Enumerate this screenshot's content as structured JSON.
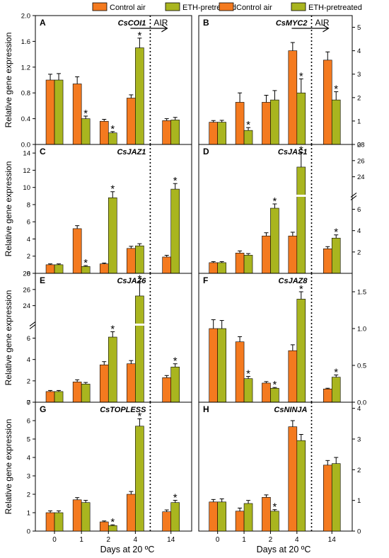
{
  "legend": [
    {
      "name": "Control air",
      "color": "#F47A1F"
    },
    {
      "name": "ETH-pretreated",
      "color": "#A9B51F"
    }
  ],
  "air_label": "AIR",
  "xlabel": "Days at 20 ºC",
  "ylabel": "Relative gene expression",
  "star": "*",
  "chart_data": [
    {
      "type": "bar",
      "panel": "A",
      "gene": "CsCOI1",
      "categories": [
        "0",
        "1",
        "2",
        "4",
        "14"
      ],
      "series": [
        {
          "name": "Control air",
          "values": [
            1.0,
            0.94,
            0.36,
            0.72,
            0.37
          ],
          "errors": [
            0.09,
            0.11,
            0.03,
            0.05,
            0.03
          ]
        },
        {
          "name": "ETH-pretreated",
          "values": [
            1.0,
            0.4,
            0.18,
            1.5,
            0.38
          ],
          "errors": [
            0.1,
            0.04,
            0.02,
            0.15,
            0.04
          ]
        }
      ],
      "significant": [
        [
          1,
          1
        ],
        [
          2,
          1
        ],
        [
          3,
          1
        ]
      ],
      "axis_side": "left",
      "ylim": [
        0,
        2.0
      ],
      "yticks": [
        "0.0",
        "0.4",
        "0.8",
        "1.2",
        "1.6",
        "2.0"
      ]
    },
    {
      "type": "bar",
      "panel": "B",
      "gene": "CsMYC2",
      "categories": [
        "0",
        "1",
        "2",
        "4",
        "14"
      ],
      "series": [
        {
          "name": "Control air",
          "values": [
            0.95,
            1.8,
            1.8,
            4.0,
            3.6
          ],
          "errors": [
            0.07,
            0.4,
            0.3,
            0.35,
            0.35
          ]
        },
        {
          "name": "ETH-pretreated",
          "values": [
            0.95,
            0.6,
            1.9,
            2.2,
            1.9
          ],
          "errors": [
            0.08,
            0.12,
            0.4,
            0.6,
            0.35
          ]
        }
      ],
      "significant": [
        [
          1,
          1
        ],
        [
          3,
          1
        ],
        [
          4,
          1
        ]
      ],
      "axis_side": "right",
      "ylim": [
        0,
        5.5
      ],
      "yticks": [
        "0",
        "1",
        "2",
        "3",
        "4",
        "5"
      ]
    },
    {
      "type": "bar",
      "panel": "C",
      "gene": "CsJAZ1",
      "categories": [
        "0",
        "1",
        "2",
        "4",
        "14"
      ],
      "series": [
        {
          "name": "Control air",
          "values": [
            1.0,
            5.2,
            1.1,
            2.9,
            1.9
          ],
          "errors": [
            0.1,
            0.35,
            0.1,
            0.25,
            0.2
          ]
        },
        {
          "name": "ETH-pretreated",
          "values": [
            1.0,
            0.8,
            8.8,
            3.2,
            9.8
          ],
          "errors": [
            0.1,
            0.1,
            0.7,
            0.25,
            0.65
          ]
        }
      ],
      "significant": [
        [
          1,
          1
        ],
        [
          2,
          1
        ],
        [
          4,
          1
        ]
      ],
      "axis_side": "left",
      "ylim": [
        0,
        15
      ],
      "yticks": [
        "0",
        "2",
        "4",
        "6",
        "8",
        "10",
        "12",
        "14"
      ]
    },
    {
      "type": "bar",
      "panel": "D",
      "gene": "CsJAS1",
      "categories": [
        "0",
        "1",
        "2",
        "4",
        "14"
      ],
      "series": [
        {
          "name": "Control air",
          "values": [
            1.0,
            1.9,
            3.5,
            3.5,
            2.3
          ],
          "errors": [
            0.1,
            0.2,
            0.3,
            0.35,
            0.2
          ]
        },
        {
          "name": "ETH-pretreated",
          "values": [
            1.0,
            1.7,
            6.1,
            25.2,
            3.3
          ],
          "errors": [
            0.1,
            0.15,
            0.4,
            1.8,
            0.3
          ]
        }
      ],
      "significant": [
        [
          2,
          1
        ],
        [
          3,
          1
        ],
        [
          4,
          1
        ]
      ],
      "axis_side": "right",
      "broken_axis": true,
      "yticks": [
        "2",
        "4",
        "6",
        "24",
        "26",
        "28"
      ]
    },
    {
      "type": "bar",
      "panel": "E",
      "gene": "CsJAZ6",
      "categories": [
        "0",
        "1",
        "2",
        "4",
        "14"
      ],
      "series": [
        {
          "name": "Control air",
          "values": [
            1.0,
            1.9,
            3.5,
            3.6,
            2.3
          ],
          "errors": [
            0.1,
            0.2,
            0.3,
            0.3,
            0.2
          ]
        },
        {
          "name": "ETH-pretreated",
          "values": [
            1.0,
            1.7,
            6.1,
            25.2,
            3.3
          ],
          "errors": [
            0.1,
            0.15,
            0.5,
            1.8,
            0.3
          ]
        }
      ],
      "significant": [
        [
          2,
          1
        ],
        [
          3,
          1
        ],
        [
          4,
          1
        ]
      ],
      "axis_side": "left",
      "broken_axis": true,
      "yticks": [
        "0",
        "2",
        "4",
        "6",
        "24",
        "26",
        "28"
      ]
    },
    {
      "type": "bar",
      "panel": "F",
      "gene": "CsJAZ8",
      "categories": [
        "0",
        "1",
        "2",
        "4",
        "14"
      ],
      "series": [
        {
          "name": "Control air",
          "values": [
            1.0,
            0.82,
            0.26,
            0.7,
            0.18
          ],
          "errors": [
            0.12,
            0.07,
            0.02,
            0.08,
            0.01
          ]
        },
        {
          "name": "ETH-pretreated",
          "values": [
            1.0,
            0.32,
            0.19,
            1.4,
            0.34
          ],
          "errors": [
            0.11,
            0.03,
            0.01,
            0.1,
            0.03
          ]
        }
      ],
      "significant": [
        [
          1,
          1
        ],
        [
          2,
          1
        ],
        [
          3,
          1
        ],
        [
          4,
          1
        ]
      ],
      "axis_side": "right",
      "ylim": [
        0,
        1.75
      ],
      "yticks": [
        "0.0",
        "0.5",
        "1.0",
        "1.5"
      ]
    },
    {
      "type": "bar",
      "panel": "G",
      "gene": "CsTOPLESS",
      "categories": [
        "0",
        "1",
        "2",
        "4",
        "14"
      ],
      "series": [
        {
          "name": "Control air",
          "values": [
            1.0,
            1.7,
            0.5,
            2.0,
            1.05
          ],
          "errors": [
            0.1,
            0.12,
            0.05,
            0.15,
            0.1
          ]
        },
        {
          "name": "ETH-pretreated",
          "values": [
            1.0,
            1.55,
            0.3,
            5.7,
            1.55
          ],
          "errors": [
            0.1,
            0.12,
            0.04,
            0.4,
            0.12
          ]
        }
      ],
      "significant": [
        [
          2,
          1
        ],
        [
          3,
          1
        ],
        [
          4,
          1
        ]
      ],
      "axis_side": "left",
      "ylim": [
        0,
        7
      ],
      "yticks": [
        "0",
        "1",
        "2",
        "3",
        "4",
        "5",
        "6",
        "7"
      ]
    },
    {
      "type": "bar",
      "panel": "H",
      "gene": "CsNINJA",
      "categories": [
        "0",
        "1",
        "2",
        "4",
        "14"
      ],
      "series": [
        {
          "name": "Control air",
          "values": [
            0.95,
            0.65,
            1.1,
            3.4,
            2.15
          ],
          "errors": [
            0.08,
            0.1,
            0.08,
            0.2,
            0.15
          ]
        },
        {
          "name": "ETH-pretreated",
          "values": [
            0.95,
            0.9,
            0.65,
            2.95,
            2.2
          ],
          "errors": [
            0.1,
            0.1,
            0.05,
            0.2,
            0.2
          ]
        }
      ],
      "significant": [
        [
          2,
          1
        ]
      ],
      "axis_side": "right",
      "ylim": [
        0,
        4.2
      ],
      "yticks": [
        "0",
        "1",
        "2",
        "3",
        "4"
      ]
    }
  ]
}
